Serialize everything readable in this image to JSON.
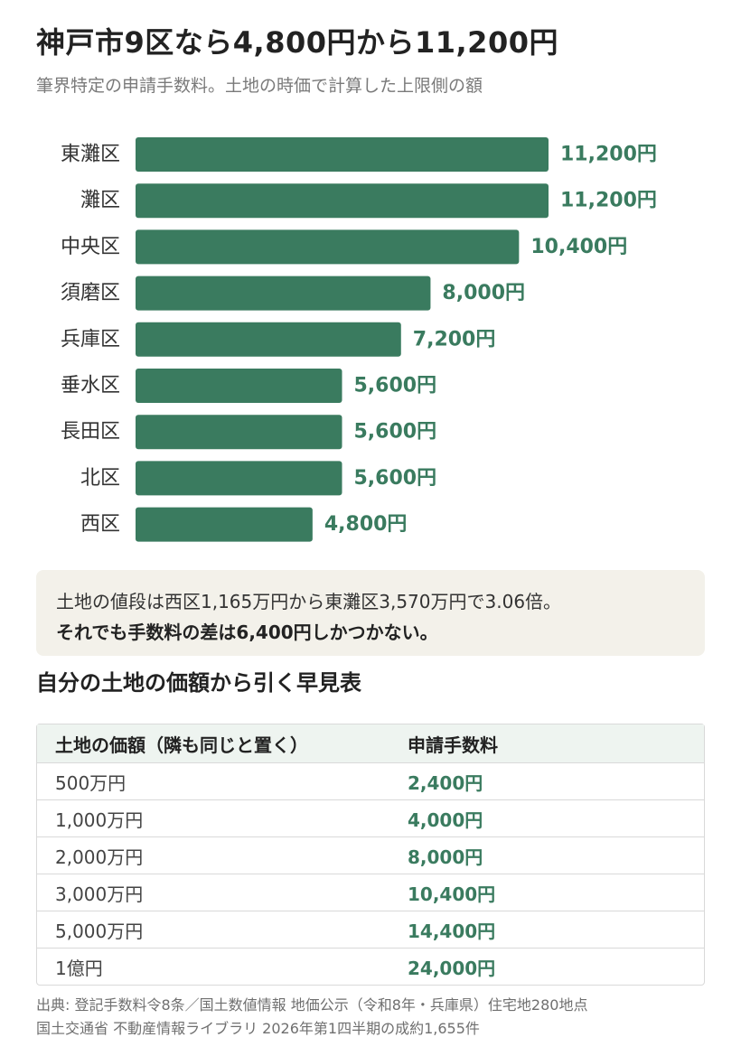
{
  "title": "神戸市9区なら4,800円から11,200円",
  "subtitle": "筆界特定の申請手数料。土地の時価で計算した上限側の額",
  "chart_data": {
    "type": "bar",
    "orientation": "horizontal",
    "categories": [
      "東灘区",
      "灘区",
      "中央区",
      "須磨区",
      "兵庫区",
      "垂水区",
      "長田区",
      "北区",
      "西区"
    ],
    "values": [
      11200,
      11200,
      10400,
      8000,
      7200,
      5600,
      5600,
      5600,
      4800
    ],
    "value_labels": [
      "11,200円",
      "11,200円",
      "10,400円",
      "8,000円",
      "7,200円",
      "5,600円",
      "5,600円",
      "5,600円",
      "4,800円"
    ],
    "xlim": [
      0,
      11200
    ],
    "bar_color": "#3a7b5f",
    "grid": false
  },
  "note": {
    "line1": "土地の値段は西区1,165万円から東灘区3,570万円で3.06倍。",
    "line2": "それでも手数料の差は6,400円しかつかない。"
  },
  "table": {
    "title": "自分の土地の価額から引く早見表",
    "headers": [
      "土地の価額（隣も同じと置く）",
      "申請手数料"
    ],
    "rows": [
      [
        "500万円",
        "2,400円"
      ],
      [
        "1,000万円",
        "4,000円"
      ],
      [
        "2,000万円",
        "8,000円"
      ],
      [
        "3,000万円",
        "10,400円"
      ],
      [
        "5,000万円",
        "14,400円"
      ],
      [
        "1億円",
        "24,000円"
      ]
    ]
  },
  "source": {
    "line1": "出典: 登記手数料令8条／国土数値情報 地価公示（令和8年・兵庫県）住宅地280地点",
    "line2": "国土交通省 不動産情報ライブラリ 2026年第1四半期の成約1,655件"
  }
}
